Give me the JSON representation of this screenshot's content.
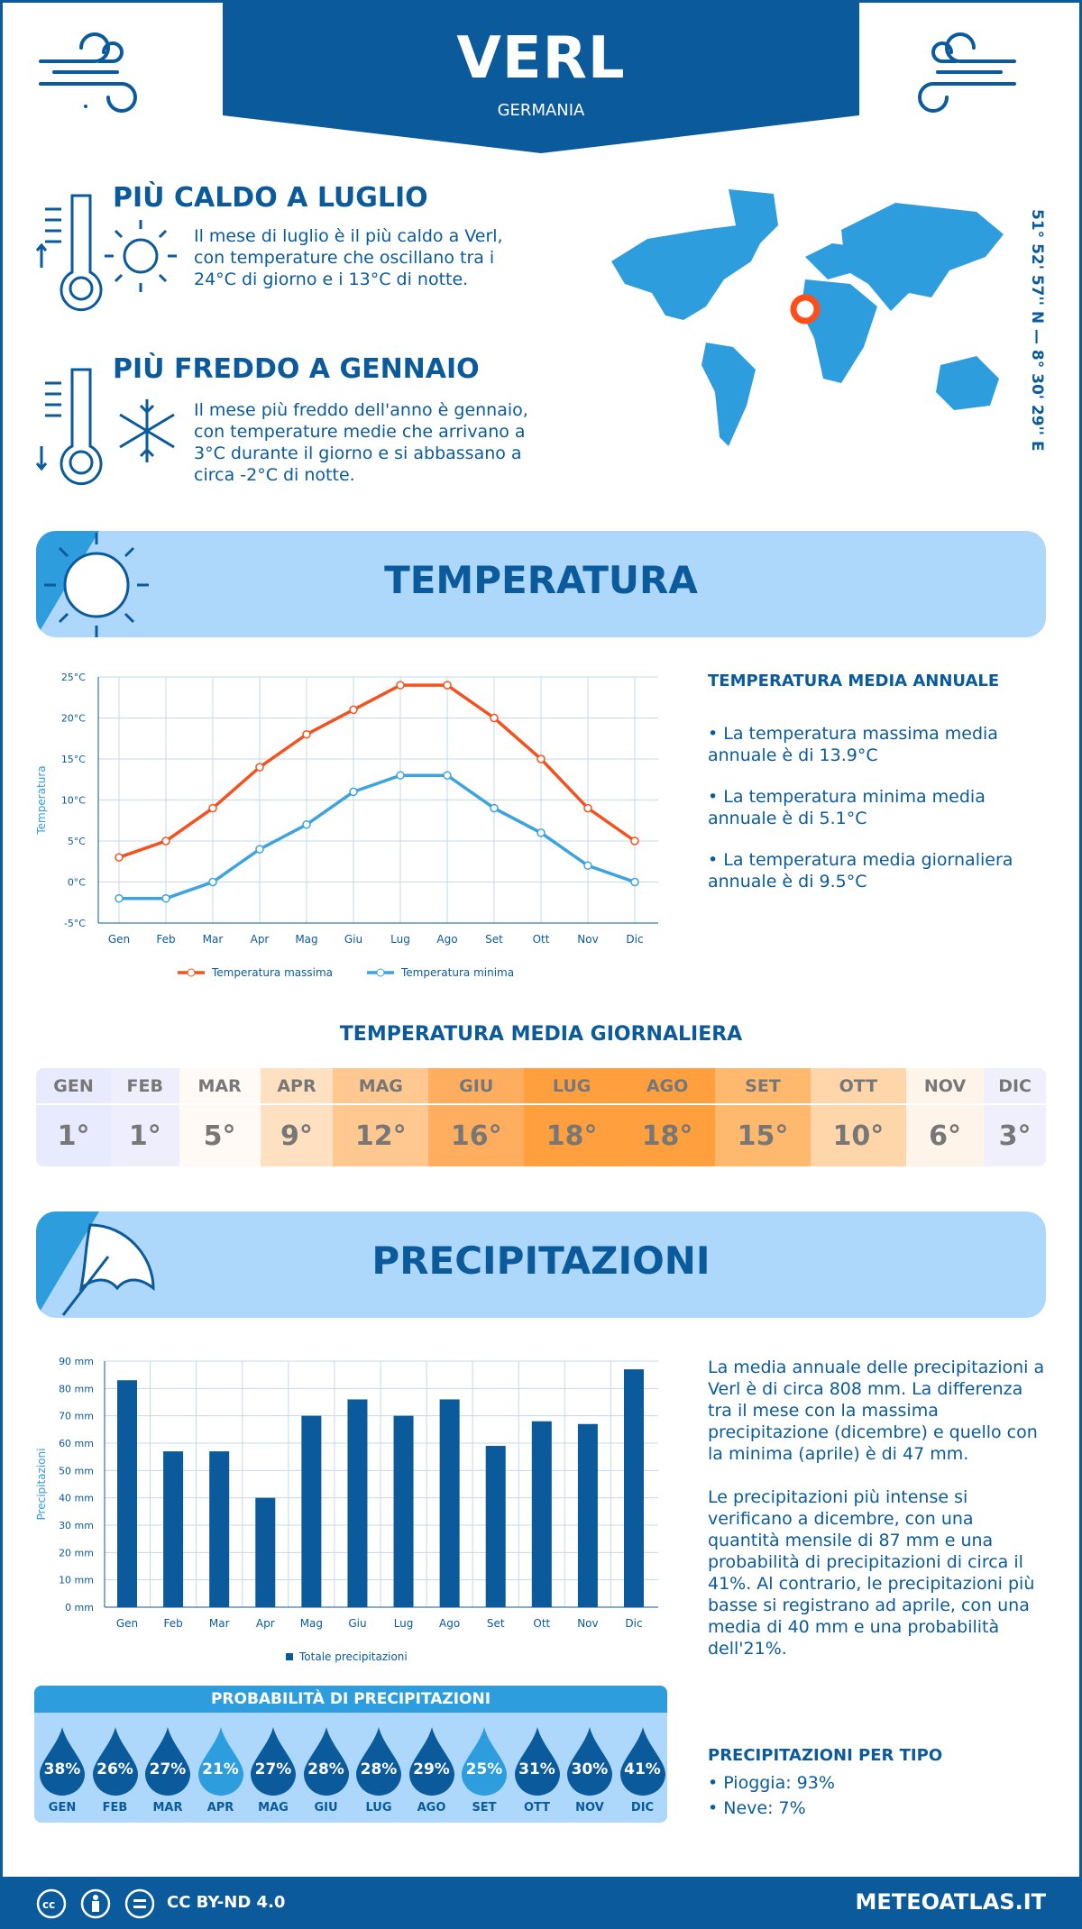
{
  "header": {
    "title": "VERL",
    "country": "GERMANIA",
    "coords": "51° 52' 57'' N — 8° 30' 29'' E"
  },
  "warmest": {
    "title": "PIÙ CALDO A LUGLIO",
    "text": "Il mese di luglio è il più caldo a Verl, con temperature che oscillano tra i 24°C di giorno e i 13°C di notte."
  },
  "coldest": {
    "title": "PIÙ FREDDO A GENNAIO",
    "text": "Il mese più freddo dell'anno è gennaio, con temperature medie che arrivano a 3°C durante il giorno e si abbassano a circa -2°C di notte."
  },
  "temperature_section": {
    "banner": "TEMPERATURA",
    "side_title": "TEMPERATURA MEDIA ANNUALE",
    "bullets": [
      "• La temperatura massima media annuale è di 13.9°C",
      "• La temperatura minima media annuale è di 5.1°C",
      "• La temperatura media giornaliera annuale è di 9.5°C"
    ]
  },
  "daily_table": {
    "title": "TEMPERATURA MEDIA GIORNALIERA",
    "months": [
      "GEN",
      "FEB",
      "MAR",
      "APR",
      "MAG",
      "GIU",
      "LUG",
      "AGO",
      "SET",
      "OTT",
      "NOV",
      "DIC"
    ],
    "values": [
      "1°",
      "1°",
      "5°",
      "9°",
      "12°",
      "16°",
      "18°",
      "18°",
      "15°",
      "10°",
      "6°",
      "3°"
    ],
    "colors": [
      "#e8eafd",
      "#eeeefd",
      "#fffaf6",
      "#ffe1c2",
      "#ffc890",
      "#ffae60",
      "#ff9f3e",
      "#ff9f3e",
      "#ffb96e",
      "#ffd6a9",
      "#fff4ea",
      "#f0f0fd"
    ]
  },
  "precip_section": {
    "banner": "PRECIPITAZIONI",
    "paragraphs": [
      "La media annuale delle precipitazioni a Verl è di circa 808 mm. La differenza tra il mese con la massima precipitazione (dicembre) e quello con la minima (aprile) è di 47 mm.",
      "Le precipitazioni più intense si verificano a dicembre, con una quantità mensile di 87 mm e una probabilità di precipitazioni di circa il 41%. Al contrario, le precipitazioni più basse si registrano ad aprile, con una media di 40 mm e una probabilità dell'21%."
    ],
    "prob_title": "PROBABILITÀ DI PRECIPITAZIONI",
    "prob_values": [
      "38%",
      "26%",
      "27%",
      "21%",
      "27%",
      "28%",
      "28%",
      "29%",
      "25%",
      "31%",
      "30%",
      "41%"
    ],
    "type_title": "PRECIPITAZIONI PER TIPO",
    "types": [
      "• Pioggia: 93%",
      "• Neve: 7%"
    ]
  },
  "footer": {
    "license": "CC BY-ND 4.0",
    "site": "METEOATLAS.IT"
  },
  "colors": {
    "primary": "#0a5a9c",
    "light": "#add8fb",
    "accent": "#2e9ddd",
    "max": "#f4511e",
    "min": "#3ba3e0"
  },
  "chart_data": [
    {
      "type": "line",
      "categories": [
        "Gen",
        "Feb",
        "Mar",
        "Apr",
        "Mag",
        "Giu",
        "Lug",
        "Ago",
        "Set",
        "Ott",
        "Nov",
        "Dic"
      ],
      "ylabel": "Temperatura",
      "ylim": [
        -5,
        25
      ],
      "yticks": [
        "-5°C",
        "0°C",
        "5°C",
        "10°C",
        "15°C",
        "20°C",
        "25°C"
      ],
      "grid": true,
      "legend": "bottom",
      "series": [
        {
          "name": "Temperatura massima",
          "values": [
            3,
            5,
            9,
            14,
            18,
            21,
            24,
            24,
            20,
            15,
            9,
            5
          ]
        },
        {
          "name": "Temperatura minima",
          "values": [
            -2,
            -2,
            0,
            4,
            7,
            11,
            13,
            13,
            9,
            6,
            2,
            0
          ]
        }
      ]
    },
    {
      "type": "bar",
      "categories": [
        "Gen",
        "Feb",
        "Mar",
        "Apr",
        "Mag",
        "Giu",
        "Lug",
        "Ago",
        "Set",
        "Ott",
        "Nov",
        "Dic"
      ],
      "ylabel": "Precipitazioni",
      "ylim": [
        0,
        90
      ],
      "yticks": [
        "0 mm",
        "10 mm",
        "20 mm",
        "30 mm",
        "40 mm",
        "50 mm",
        "60 mm",
        "70 mm",
        "80 mm",
        "90 mm"
      ],
      "grid": true,
      "legend": "bottom",
      "series": [
        {
          "name": "Totale precipitazioni",
          "values": [
            83,
            57,
            57,
            40,
            70,
            76,
            70,
            76,
            59,
            68,
            67,
            87
          ]
        }
      ]
    }
  ]
}
